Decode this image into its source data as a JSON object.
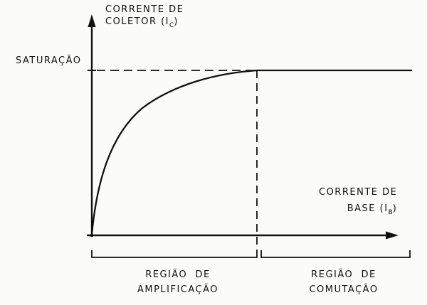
{
  "axes": {
    "y_label": {
      "line1": "CORRENTE DE",
      "line2_prefix": "COLETOR (I",
      "line2_sub": "C",
      "line2_suffix": ")"
    },
    "x_label": {
      "line1": "CORRENTE DE",
      "line2_prefix": "BASE (I",
      "line2_sub": "B",
      "line2_suffix": ")"
    }
  },
  "level_label": "SATURAÇÃO",
  "regions": {
    "amplification": {
      "line1": "REGIÃO  DE",
      "line2": "AMPLIFICAÇÃO"
    },
    "switching": {
      "line1": "REGIÃO  DE",
      "line2": "COMUTAÇÃO"
    }
  },
  "colors": {
    "ink": "#111111",
    "paper": "#fbfbf9"
  }
}
